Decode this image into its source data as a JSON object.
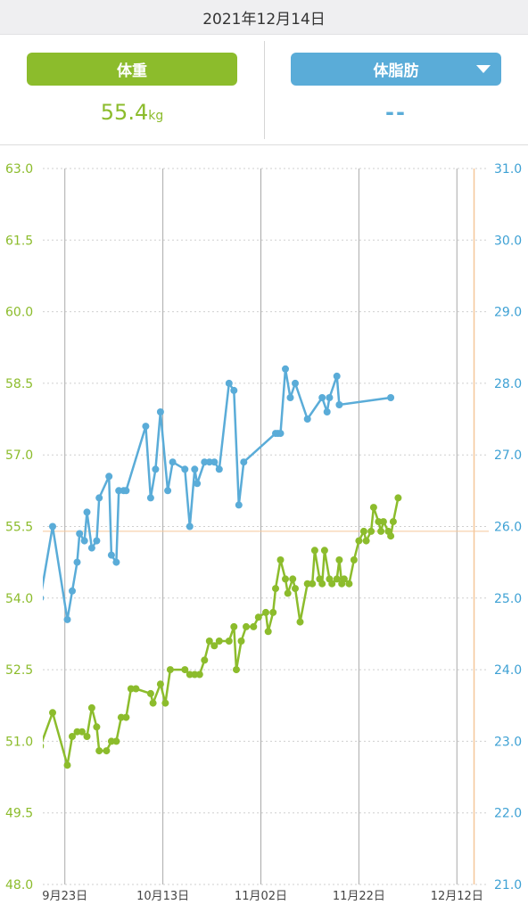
{
  "header": {
    "date": "2021年12月14日"
  },
  "weight_tab": {
    "label": "体重",
    "value": "55.4",
    "unit": "kg"
  },
  "bodyfat_tab": {
    "label": "体脂肪",
    "value": "--"
  },
  "colors": {
    "weight": "#8cbc2c",
    "bodyfat": "#5aacd8",
    "reference": "#f5c79a",
    "grid": "#aaaaaa"
  },
  "chart_data": {
    "type": "line",
    "x_ticks": [
      "9月23日",
      "10月13日",
      "11月02日",
      "11月22日",
      "12月12日"
    ],
    "y_left": {
      "ticks": [
        "63.0",
        "61.5",
        "60.0",
        "58.5",
        "57.0",
        "55.5",
        "54.0",
        "52.5",
        "51.0",
        "49.5",
        "48.0"
      ],
      "range": [
        48.0,
        63.0
      ],
      "unit": "kg"
    },
    "y_right": {
      "ticks": [
        "31.0",
        "30.0",
        "29.0",
        "28.0",
        "27.0",
        "26.0",
        "25.0",
        "24.0",
        "23.0",
        "22.0",
        "21.0"
      ],
      "range": [
        21.0,
        31.0
      ]
    },
    "reference_weight": 55.4,
    "reference_day": 83.5,
    "x_day_range": [
      -4.5,
      86.5
    ],
    "series": [
      {
        "axis": "left",
        "points": [
          [
            -5,
            50.9
          ],
          [
            -2.5,
            51.6
          ],
          [
            0.5,
            50.5
          ],
          [
            1.5,
            51.1
          ],
          [
            2.5,
            51.2
          ],
          [
            3.5,
            51.2
          ],
          [
            4.5,
            51.1
          ],
          [
            5.5,
            51.7
          ],
          [
            6.5,
            51.3
          ],
          [
            7,
            50.8
          ],
          [
            8.5,
            50.8
          ],
          [
            9.5,
            51.0
          ],
          [
            10.5,
            51.0
          ],
          [
            11.5,
            51.5
          ],
          [
            12.5,
            51.5
          ],
          [
            13.5,
            52.1
          ],
          [
            14.5,
            52.1
          ],
          [
            17.5,
            52.0
          ],
          [
            18,
            51.8
          ],
          [
            19.5,
            52.2
          ],
          [
            20.5,
            51.8
          ],
          [
            21.5,
            52.5
          ],
          [
            24.5,
            52.5
          ],
          [
            25.5,
            52.4
          ],
          [
            26.5,
            52.4
          ],
          [
            27.5,
            52.4
          ],
          [
            28.5,
            52.7
          ],
          [
            29.5,
            53.1
          ],
          [
            30.5,
            53.0
          ],
          [
            31.5,
            53.1
          ],
          [
            33.5,
            53.1
          ],
          [
            34.5,
            53.4
          ],
          [
            35,
            52.5
          ],
          [
            36,
            53.1
          ],
          [
            37,
            53.4
          ],
          [
            38.5,
            53.4
          ],
          [
            39.5,
            53.6
          ],
          [
            41,
            53.7
          ],
          [
            41.5,
            53.3
          ],
          [
            42.5,
            53.7
          ],
          [
            43,
            54.2
          ],
          [
            44,
            54.8
          ],
          [
            45,
            54.4
          ],
          [
            45.5,
            54.1
          ],
          [
            46.5,
            54.4
          ],
          [
            47,
            54.2
          ],
          [
            48,
            53.5
          ],
          [
            49.5,
            54.3
          ],
          [
            50.5,
            54.3
          ],
          [
            51,
            55.0
          ],
          [
            52,
            54.4
          ],
          [
            52.5,
            54.3
          ],
          [
            53,
            55.0
          ],
          [
            54,
            54.4
          ],
          [
            54.5,
            54.3
          ],
          [
            55.5,
            54.4
          ],
          [
            56,
            54.8
          ],
          [
            56.5,
            54.3
          ],
          [
            57,
            54.4
          ],
          [
            58,
            54.3
          ],
          [
            59,
            54.8
          ],
          [
            60,
            55.2
          ],
          [
            61,
            55.4
          ],
          [
            61.5,
            55.2
          ],
          [
            62.5,
            55.4
          ],
          [
            63,
            55.9
          ],
          [
            64,
            55.6
          ],
          [
            64.5,
            55.4
          ],
          [
            65,
            55.6
          ],
          [
            66,
            55.4
          ],
          [
            66.5,
            55.3
          ],
          [
            67,
            55.6
          ],
          [
            68,
            56.1
          ]
        ]
      },
      {
        "axis": "right",
        "points": [
          [
            -5,
            25.0
          ],
          [
            -2.5,
            26.0
          ],
          [
            0.5,
            24.7
          ],
          [
            1.5,
            25.1
          ],
          [
            2.5,
            25.5
          ],
          [
            3,
            25.9
          ],
          [
            4,
            25.8
          ],
          [
            4.5,
            26.2
          ],
          [
            5.5,
            25.7
          ],
          [
            6.5,
            25.8
          ],
          [
            7,
            26.4
          ],
          [
            9,
            26.7
          ],
          [
            9.5,
            25.6
          ],
          [
            10.5,
            25.5
          ],
          [
            11,
            26.5
          ],
          [
            12,
            26.5
          ],
          [
            12.5,
            26.5
          ],
          [
            16.5,
            27.4
          ],
          [
            17.5,
            26.4
          ],
          [
            18.5,
            26.8
          ],
          [
            19.5,
            27.6
          ],
          [
            21,
            26.5
          ],
          [
            22,
            26.9
          ],
          [
            24.5,
            26.8
          ],
          [
            25.5,
            26.0
          ],
          [
            26.5,
            26.8
          ],
          [
            27,
            26.6
          ],
          [
            28.5,
            26.9
          ],
          [
            29.5,
            26.9
          ],
          [
            30.5,
            26.9
          ],
          [
            31.5,
            26.8
          ],
          [
            33.5,
            28.0
          ],
          [
            34.5,
            27.9
          ],
          [
            35.5,
            26.3
          ],
          [
            36.5,
            26.9
          ],
          [
            43,
            27.3
          ],
          [
            43.5,
            27.3
          ],
          [
            44,
            27.3
          ],
          [
            45,
            28.2
          ],
          [
            46,
            27.8
          ],
          [
            47,
            28.0
          ],
          [
            49.5,
            27.5
          ],
          [
            52.5,
            27.8
          ],
          [
            53.5,
            27.6
          ],
          [
            54,
            27.8
          ],
          [
            55.5,
            28.1
          ],
          [
            56,
            27.7
          ],
          [
            66.5,
            27.8
          ]
        ]
      }
    ]
  }
}
